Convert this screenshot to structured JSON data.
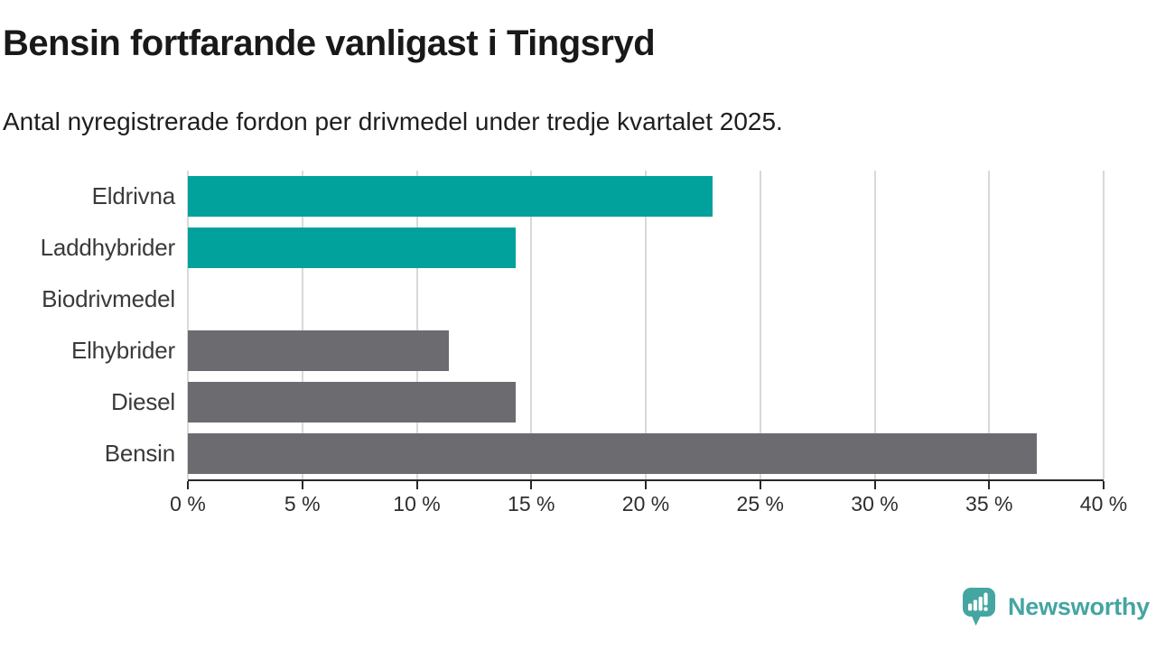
{
  "header": {
    "title": "Bensin fortfarande vanligast i Tingsryd",
    "subtitle": "Antal nyregistrerade fordon per drivmedel under tredje kvartalet 2025."
  },
  "chart_data": {
    "type": "bar",
    "orientation": "horizontal",
    "title": "Bensin fortfarande vanligast i Tingsryd",
    "subtitle": "Antal nyregistrerade fordon per drivmedel under tredje kvartalet 2025.",
    "categories": [
      "Eldrivna",
      "Laddhybrider",
      "Biodrivmedel",
      "Elhybrider",
      "Diesel",
      "Bensin"
    ],
    "values": [
      22.9,
      14.3,
      0,
      11.4,
      14.3,
      37.1
    ],
    "unit": "%",
    "xlim": [
      0,
      40
    ],
    "x_tick_values": [
      0,
      5,
      10,
      15,
      20,
      25,
      30,
      35,
      40
    ],
    "x_tick_labels": [
      "0 %",
      "5 %",
      "10 %",
      "15 %",
      "20 %",
      "25 %",
      "30 %",
      "35 %",
      "40 %"
    ],
    "grid": true,
    "legend": false,
    "bar_colors": [
      "#00a29b",
      "#00a29b",
      "#6b6b70",
      "#6b6b70",
      "#6b6b70",
      "#6b6b70"
    ],
    "highlight_color": "#00a29b",
    "default_color": "#6b6b70",
    "gridline_color": "#d9d9d9",
    "axis_color": "#28282c"
  },
  "footer": {
    "brand": "Newsworthy",
    "logo_icon": "newsworthy-logo-icon",
    "brand_color": "#45a5a1"
  }
}
